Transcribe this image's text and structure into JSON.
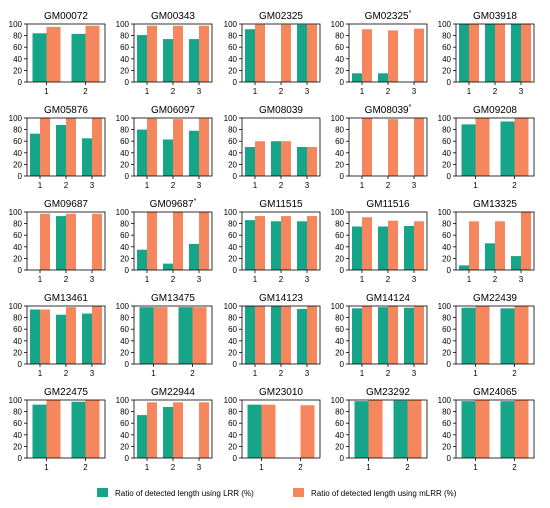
{
  "colors": {
    "lrr": "#17a589",
    "mlrr": "#f5865e",
    "frame": "#000000"
  },
  "legend": {
    "lrr_label": "Ratio of detected length using LRR (%)",
    "mlrr_label": "Ratio of detected length using mLRR (%)"
  },
  "chart_data": {
    "type": "bar",
    "ylim": [
      0,
      100
    ],
    "yticks": [
      0,
      20,
      40,
      60,
      80,
      100
    ],
    "grid": false,
    "legend_position": "bottom",
    "series_names": [
      "Ratio of detected length using LRR (%)",
      "Ratio of detected length using mLRR (%)"
    ],
    "panels": [
      {
        "title": "GM00072",
        "categories": [
          "1",
          "2"
        ],
        "lrr": [
          84,
          83
        ],
        "mlrr": [
          95,
          97
        ]
      },
      {
        "title": "GM00343",
        "categories": [
          "1",
          "2",
          "3"
        ],
        "lrr": [
          81,
          74,
          74
        ],
        "mlrr": [
          97,
          97,
          97
        ]
      },
      {
        "title": "GM02325",
        "categories": [
          "1",
          "2",
          "3"
        ],
        "lrr": [
          91,
          0,
          99
        ],
        "mlrr": [
          99,
          99,
          99
        ]
      },
      {
        "title": "GM02325",
        "sup": "*",
        "categories": [
          "1",
          "2",
          "3"
        ],
        "lrr": [
          15,
          15,
          0
        ],
        "mlrr": [
          91,
          89,
          92
        ]
      },
      {
        "title": "GM03918",
        "categories": [
          "1",
          "2",
          "3"
        ],
        "lrr": [
          100,
          100,
          100
        ],
        "mlrr": [
          100,
          100,
          100
        ]
      },
      {
        "title": "GM05876",
        "categories": [
          "1",
          "2",
          "3"
        ],
        "lrr": [
          73,
          88,
          65
        ],
        "mlrr": [
          100,
          100,
          100
        ]
      },
      {
        "title": "GM06097",
        "categories": [
          "1",
          "2",
          "3"
        ],
        "lrr": [
          80,
          63,
          78
        ],
        "mlrr": [
          99,
          98,
          99
        ]
      },
      {
        "title": "GM08039",
        "categories": [
          "1",
          "2",
          "3"
        ],
        "lrr": [
          50,
          60,
          50
        ],
        "mlrr": [
          60,
          60,
          50
        ]
      },
      {
        "title": "GM08039",
        "sup": "*",
        "categories": [
          "1",
          "2",
          "3"
        ],
        "lrr": [
          0,
          0,
          0
        ],
        "mlrr": [
          100,
          98,
          100
        ]
      },
      {
        "title": "GM09208",
        "categories": [
          "1",
          "2"
        ],
        "lrr": [
          89,
          94
        ],
        "mlrr": [
          100,
          100
        ]
      },
      {
        "title": "GM09687",
        "categories": [
          "1",
          "2",
          "3"
        ],
        "lrr": [
          0,
          93,
          0
        ],
        "mlrr": [
          97,
          97,
          97
        ]
      },
      {
        "title": "GM09687",
        "sup": "*",
        "categories": [
          "1",
          "2",
          "3"
        ],
        "lrr": [
          35,
          11,
          45
        ],
        "mlrr": [
          100,
          100,
          100
        ]
      },
      {
        "title": "GM11515",
        "categories": [
          "1",
          "2",
          "3"
        ],
        "lrr": [
          86,
          84,
          84
        ],
        "mlrr": [
          93,
          93,
          93
        ]
      },
      {
        "title": "GM11516",
        "categories": [
          "1",
          "2",
          "3"
        ],
        "lrr": [
          75,
          75,
          76
        ],
        "mlrr": [
          91,
          85,
          84
        ]
      },
      {
        "title": "GM13325",
        "categories": [
          "1",
          "2",
          "3"
        ],
        "lrr": [
          8,
          46,
          24
        ],
        "mlrr": [
          84,
          84,
          100
        ]
      },
      {
        "title": "GM13461",
        "categories": [
          "1",
          "2",
          "3"
        ],
        "lrr": [
          94,
          85,
          87
        ],
        "mlrr": [
          94,
          98,
          100
        ]
      },
      {
        "title": "GM13475",
        "categories": [
          "1",
          "2"
        ],
        "lrr": [
          98,
          98
        ],
        "mlrr": [
          98,
          98
        ]
      },
      {
        "title": "GM14123",
        "categories": [
          "1",
          "2",
          "3"
        ],
        "lrr": [
          100,
          100,
          95
        ],
        "mlrr": [
          100,
          100,
          100
        ]
      },
      {
        "title": "GM14124",
        "categories": [
          "1",
          "2",
          "3"
        ],
        "lrr": [
          96,
          98,
          97
        ],
        "mlrr": [
          100,
          100,
          100
        ]
      },
      {
        "title": "GM22439",
        "categories": [
          "1",
          "2"
        ],
        "lrr": [
          97,
          96
        ],
        "mlrr": [
          100,
          100
        ]
      },
      {
        "title": "GM22475",
        "categories": [
          "1",
          "2"
        ],
        "lrr": [
          92,
          97
        ],
        "mlrr": [
          100,
          100
        ]
      },
      {
        "title": "GM22944",
        "categories": [
          "1",
          "2",
          "3"
        ],
        "lrr": [
          74,
          88,
          0
        ],
        "mlrr": [
          96,
          96,
          96
        ]
      },
      {
        "title": "GM23010",
        "categories": [
          "1",
          "2"
        ],
        "lrr": [
          92,
          0
        ],
        "mlrr": [
          92,
          91
        ]
      },
      {
        "title": "GM23292",
        "categories": [
          "1",
          "2"
        ],
        "lrr": [
          98,
          99
        ],
        "mlrr": [
          100,
          100
        ]
      },
      {
        "title": "GM24065",
        "categories": [
          "1",
          "2"
        ],
        "lrr": [
          98,
          98
        ],
        "mlrr": [
          100,
          100
        ]
      }
    ]
  }
}
